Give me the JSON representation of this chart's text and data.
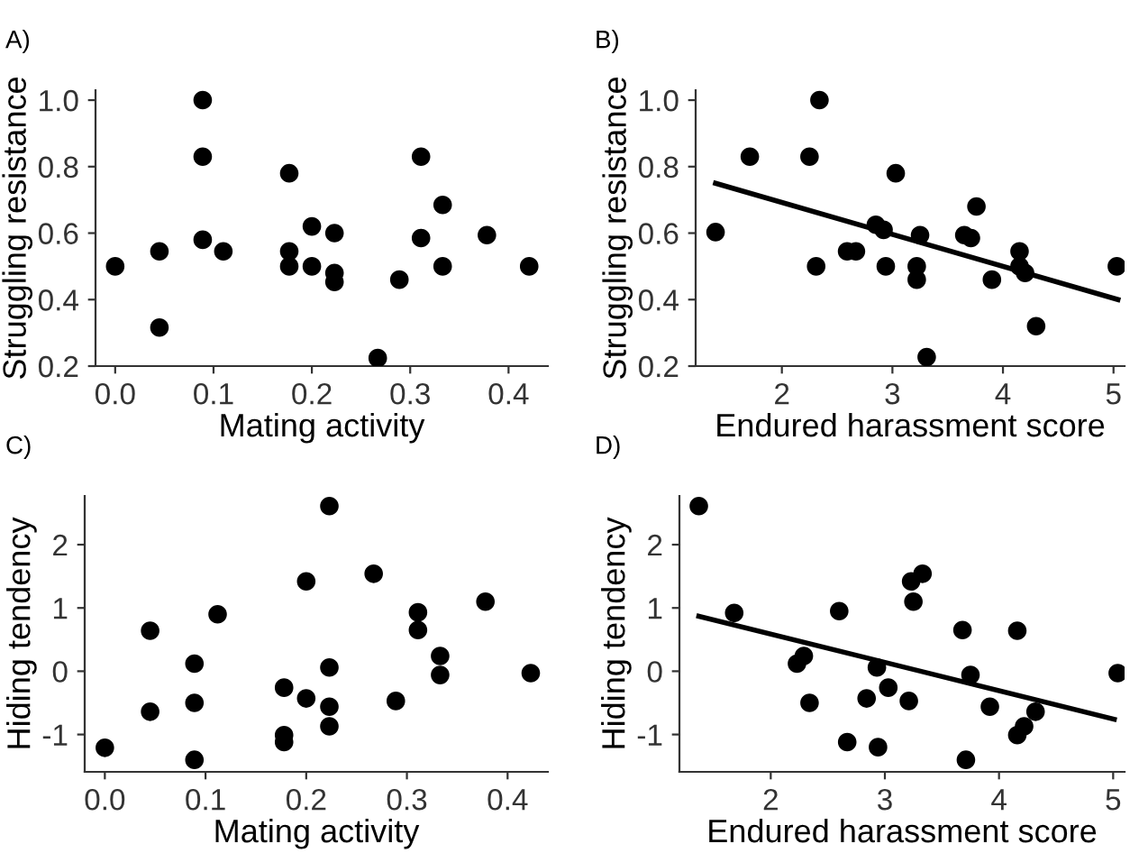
{
  "chart_data": [
    {
      "type": "scatter",
      "title": "A)",
      "xlabel": "Mating activity",
      "ylabel": "Struggling resistance",
      "xlim": [
        -0.02,
        0.44
      ],
      "ylim": [
        0.2,
        1.03
      ],
      "xticks": [
        {
          "value": 0,
          "label": "0.0"
        },
        0.1,
        0.2,
        0.3,
        0.4
      ],
      "yticks": [
        0.2,
        0.4,
        0.6,
        0.8,
        {
          "value": 1,
          "label": "1.0"
        }
      ],
      "grid": false,
      "marker": "circle",
      "series": [
        {
          "color": "#000000",
          "x": [
            0,
            0.045,
            0.045,
            0.089,
            0.089,
            0.089,
            0.11,
            0.177,
            0.177,
            0.177,
            0.2,
            0.2,
            0.223,
            0.223,
            0.223,
            0.267,
            0.289,
            0.311,
            0.311,
            0.333,
            0.333,
            0.378,
            0.421
          ],
          "values": [
            0.5,
            0.545,
            0.316,
            1.0,
            0.83,
            0.58,
            0.545,
            0.78,
            0.545,
            0.5,
            0.62,
            0.5,
            0.6,
            0.48,
            0.453,
            0.224,
            0.46,
            0.83,
            0.585,
            0.685,
            0.5,
            0.594,
            0.5
          ]
        }
      ]
    },
    {
      "type": "scatter",
      "title": "B)",
      "xlabel": "Endured harassment score",
      "ylabel": "Struggling resistance",
      "xlim": [
        1.22,
        5.1
      ],
      "ylim": [
        0.2,
        1.03
      ],
      "xticks": [
        2,
        3,
        4,
        5
      ],
      "yticks": [
        0.2,
        0.4,
        0.6,
        0.8,
        {
          "value": 1,
          "label": "1.0"
        }
      ],
      "grid": false,
      "series": [
        {
          "color": "#000000",
          "marker": "circle",
          "x": [
            1.4,
            1.71,
            2.25,
            2.34,
            2.31,
            2.59,
            2.67,
            2.85,
            2.92,
            2.94,
            3.03,
            3.25,
            3.22,
            3.22,
            3.31,
            3.65,
            3.71,
            3.76,
            4.15,
            4.15,
            4.2,
            3.9,
            4.3,
            5.03
          ],
          "values": [
            0.603,
            0.83,
            0.83,
            1.0,
            0.5,
            0.545,
            0.545,
            0.625,
            0.61,
            0.5,
            0.78,
            0.594,
            0.5,
            0.46,
            0.227,
            0.594,
            0.585,
            0.68,
            0.545,
            0.5,
            0.48,
            0.46,
            0.32,
            0.5
          ]
        },
        {
          "type": "line",
          "color": "#000000",
          "x": [
            1.4,
            5.04
          ],
          "values": [
            0.75,
            0.4
          ]
        }
      ]
    },
    {
      "type": "scatter",
      "title": "C)",
      "xlabel": "Mating activity",
      "ylabel": "Hiding tendency",
      "xlim": [
        -0.02,
        0.44
      ],
      "ylim": [
        -1.59,
        2.77
      ],
      "xticks": [
        {
          "value": 0,
          "label": "0.0"
        },
        0.1,
        0.2,
        0.3,
        0.4
      ],
      "yticks": [
        -1,
        0,
        1,
        2
      ],
      "grid": false,
      "marker": "circle",
      "series": [
        {
          "color": "#000000",
          "x": [
            0,
            0.045,
            0.045,
            0.089,
            0.089,
            0.089,
            0.112,
            0.178,
            0.178,
            0.178,
            0.2,
            0.2,
            0.223,
            0.223,
            0.223,
            0.223,
            0.267,
            0.289,
            0.311,
            0.311,
            0.333,
            0.333,
            0.378,
            0.423
          ],
          "values": [
            -1.21,
            0.64,
            -0.64,
            0.12,
            -0.5,
            -1.4,
            0.9,
            -0.26,
            -1.01,
            -1.12,
            1.42,
            -0.43,
            2.61,
            0.06,
            -0.56,
            -0.87,
            1.54,
            -0.47,
            0.93,
            0.65,
            0.24,
            -0.06,
            1.1,
            -0.03
          ]
        }
      ]
    },
    {
      "type": "scatter",
      "title": "D)",
      "xlabel": "Endured harassment score",
      "ylabel": "Hiding tendency",
      "xlim": [
        1.2,
        5.1
      ],
      "ylim": [
        -1.59,
        2.77
      ],
      "xticks": [
        2,
        3,
        4,
        5
      ],
      "yticks": [
        -1,
        0,
        1,
        2
      ],
      "grid": false,
      "series": [
        {
          "color": "#000000",
          "marker": "circle",
          "x": [
            1.37,
            1.68,
            2.23,
            2.29,
            2.34,
            2.6,
            2.67,
            2.84,
            2.93,
            2.94,
            3.03,
            3.21,
            3.23,
            3.33,
            3.25,
            3.68,
            3.75,
            3.71,
            3.92,
            4.16,
            4.16,
            4.22,
            4.32,
            5.04
          ],
          "values": [
            2.61,
            0.92,
            0.12,
            0.24,
            -0.5,
            0.95,
            -1.12,
            -0.43,
            0.06,
            -1.2,
            -0.26,
            -0.47,
            1.42,
            1.54,
            1.1,
            0.65,
            -0.06,
            -1.4,
            -0.56,
            0.64,
            -1.01,
            -0.87,
            -0.64,
            -0.03
          ]
        },
        {
          "type": "line",
          "color": "#000000",
          "x": [
            1.37,
            5.01
          ],
          "values": [
            0.87,
            -0.76
          ]
        }
      ]
    }
  ]
}
